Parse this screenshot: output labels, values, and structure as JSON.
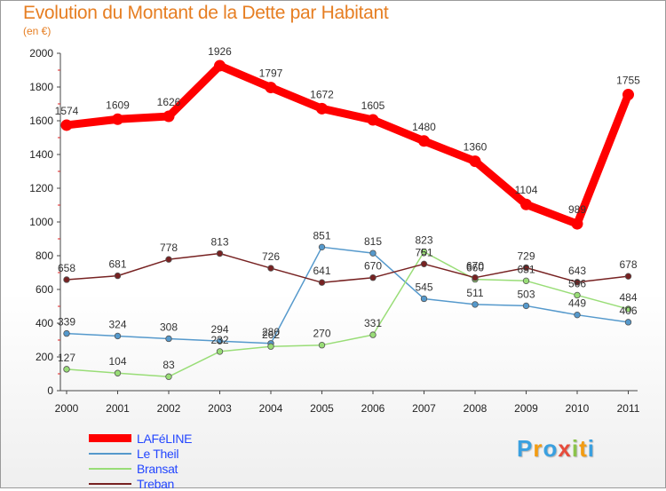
{
  "chart_data": {
    "type": "line",
    "title": "Evolution du Montant de la Dette par Habitant",
    "subtitle": "(en €)",
    "x": [
      "2000",
      "2001",
      "2002",
      "2003",
      "2004",
      "2005",
      "2006",
      "2007",
      "2008",
      "2009",
      "2010",
      "2011"
    ],
    "ylim": [
      0,
      2000
    ],
    "yticks": [
      0,
      200,
      400,
      600,
      800,
      1000,
      1200,
      1400,
      1600,
      1800,
      2000
    ],
    "grid": false,
    "legend_position": "bottom-left",
    "series": [
      {
        "name": "LAFéLINE",
        "color": "#ff0000",
        "emphasis": true,
        "values": [
          1574,
          1609,
          1626,
          1926,
          1797,
          1672,
          1605,
          1480,
          1360,
          1104,
          989,
          1755
        ],
        "labels": [
          "1574",
          "1609",
          "1626",
          "1926",
          "1797",
          "1672",
          "1605",
          "1480",
          "1360",
          "1104",
          "989",
          "1755"
        ]
      },
      {
        "name": "Le Theil",
        "color": "#5599cc",
        "values": [
          339,
          324,
          308,
          294,
          280,
          851,
          815,
          545,
          511,
          503,
          449,
          406
        ],
        "labels": [
          "339",
          "324",
          "308",
          "294",
          "280",
          "851",
          "815",
          "545",
          "511",
          "503",
          "449",
          "406"
        ]
      },
      {
        "name": "Bransat",
        "color": "#99dd77",
        "values": [
          127,
          104,
          83,
          232,
          262,
          270,
          331,
          823,
          660,
          651,
          566,
          484
        ],
        "labels": [
          "127",
          "104",
          "83",
          "232",
          "262",
          "270",
          "331",
          "823",
          "660",
          "651",
          "566",
          "484"
        ]
      },
      {
        "name": "Treban",
        "color": "#772222",
        "values": [
          658,
          681,
          778,
          813,
          726,
          641,
          670,
          751,
          670,
          729,
          643,
          678
        ],
        "labels": [
          "658",
          "681",
          "778",
          "813",
          "726",
          "641",
          "670",
          "751",
          "670",
          "729",
          "643",
          "678"
        ]
      }
    ]
  },
  "logo": {
    "letters": [
      "P",
      "r",
      "o",
      "x",
      "i",
      "t",
      "i"
    ],
    "colors": [
      "#3aa0e0",
      "#f39c12",
      "#3aa0e0",
      "#e74c3c",
      "#8bc34a",
      "#f39c12",
      "#3aa0e0"
    ]
  }
}
